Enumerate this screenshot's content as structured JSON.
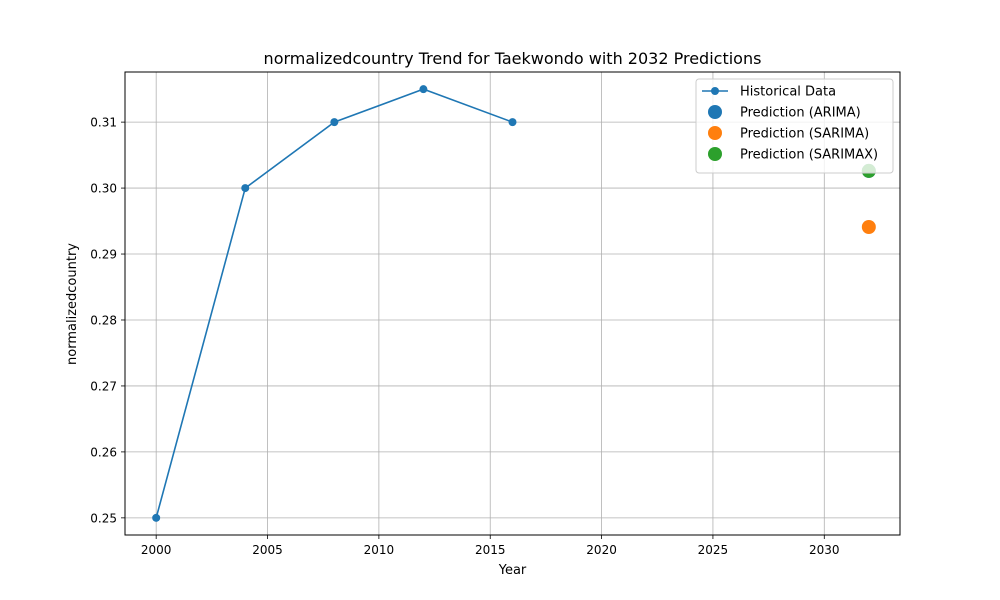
{
  "chart_data": {
    "type": "line",
    "title": "normalizedcountry Trend for Taekwondo with 2032 Predictions",
    "xlabel": "Year",
    "ylabel": "normalizedcountry",
    "xlim": [
      1998.6,
      2033.4
    ],
    "ylim": [
      0.2474,
      0.3176
    ],
    "xticks": [
      2000,
      2005,
      2010,
      2015,
      2020,
      2025,
      2030
    ],
    "xtick_labels": [
      "2000",
      "2005",
      "2010",
      "2015",
      "2020",
      "2025",
      "2030"
    ],
    "yticks": [
      0.25,
      0.26,
      0.27,
      0.28,
      0.29,
      0.3,
      0.31
    ],
    "ytick_labels": [
      "0.25",
      "0.26",
      "0.27",
      "0.28",
      "0.29",
      "0.30",
      "0.31"
    ],
    "grid": true,
    "legend_position": "top-right",
    "series": [
      {
        "name": "Historical Data",
        "kind": "line-marker",
        "color": "#1f77b4",
        "x": [
          2000,
          2004,
          2008,
          2012,
          2016
        ],
        "y": [
          0.25,
          0.3,
          0.31,
          0.315,
          0.31
        ]
      },
      {
        "name": "Prediction (ARIMA)",
        "kind": "scatter",
        "color": "#1f77b4",
        "x": [
          2032
        ],
        "y": [
          0.3026
        ]
      },
      {
        "name": "Prediction (SARIMA)",
        "kind": "scatter",
        "color": "#ff7f0e",
        "x": [
          2032
        ],
        "y": [
          0.2941
        ]
      },
      {
        "name": "Prediction (SARIMAX)",
        "kind": "scatter",
        "color": "#2ca02c",
        "x": [
          2032
        ],
        "y": [
          0.3026
        ]
      }
    ]
  }
}
